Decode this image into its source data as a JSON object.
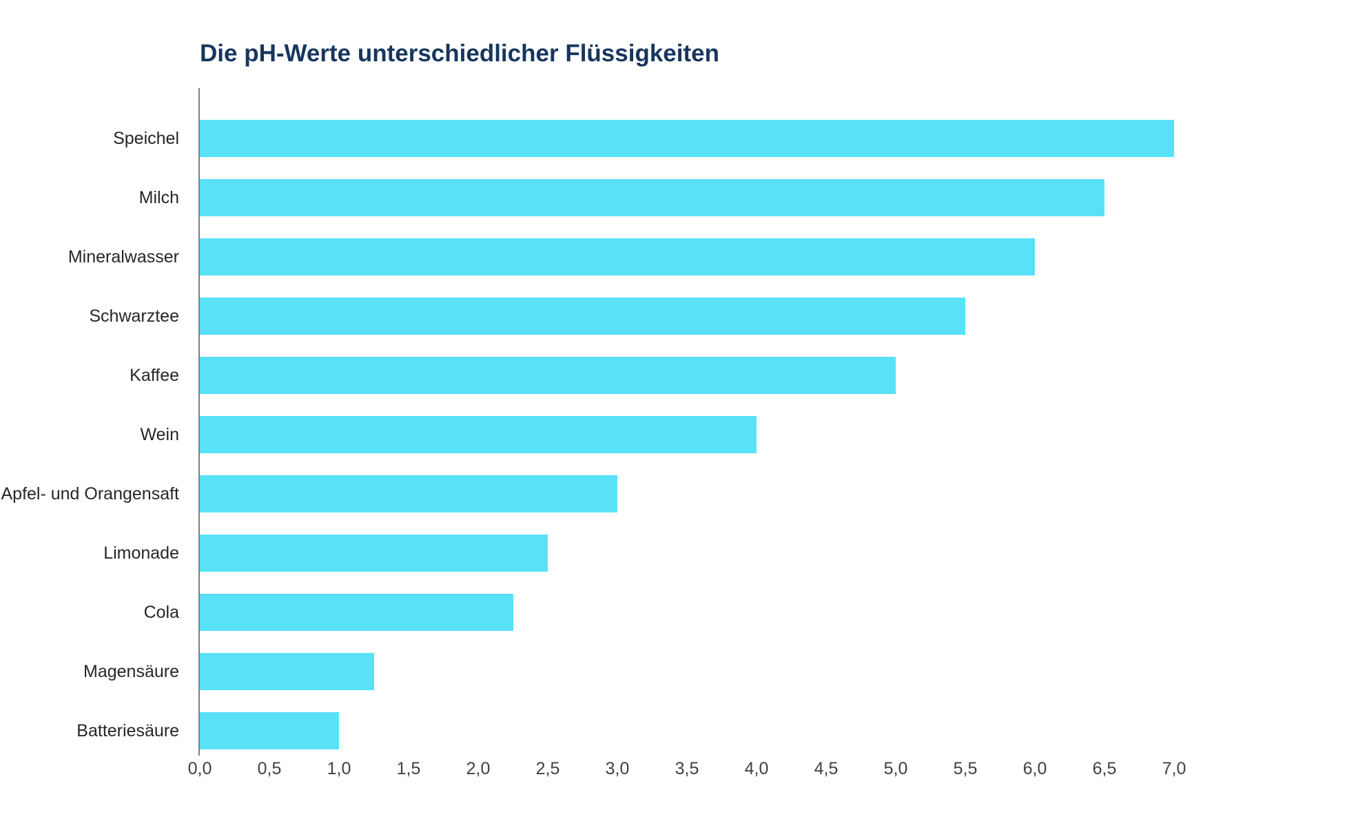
{
  "title": "Die pH-Werte unterschiedlicher Flüssigkeiten",
  "colors": {
    "bar": "#58e1f7",
    "title": "#17365d",
    "label": "#262626",
    "tick": "#404040",
    "axis_line": "#7f7f7f",
    "background": "#ffffff"
  },
  "chart_data": {
    "type": "bar",
    "orientation": "horizontal",
    "title": "Die pH-Werte unterschiedlicher Flüssigkeiten",
    "categories": [
      "Speichel",
      "Milch",
      "Mineralwasser",
      "Schwarztee",
      "Kaffee",
      "Wein",
      "Apfel- und Orangensaft",
      "Limonade",
      "Cola",
      "Magensäure",
      "Batteriesäure"
    ],
    "values": [
      7.0,
      6.5,
      6.0,
      5.5,
      5.0,
      4.0,
      3.0,
      2.5,
      2.25,
      1.25,
      1.0
    ],
    "xlabel": "",
    "ylabel": "",
    "xlim": [
      0,
      7
    ],
    "xtick_step": 0.5,
    "xtick_labels": [
      "0,0",
      "0,5",
      "1,0",
      "1,5",
      "2,0",
      "2,5",
      "3,0",
      "3,5",
      "4,0",
      "4,5",
      "5,0",
      "5,5",
      "6,0",
      "6,5",
      "7,0"
    ],
    "grid": false,
    "legend": false,
    "bar_color": "#58e1f7"
  }
}
